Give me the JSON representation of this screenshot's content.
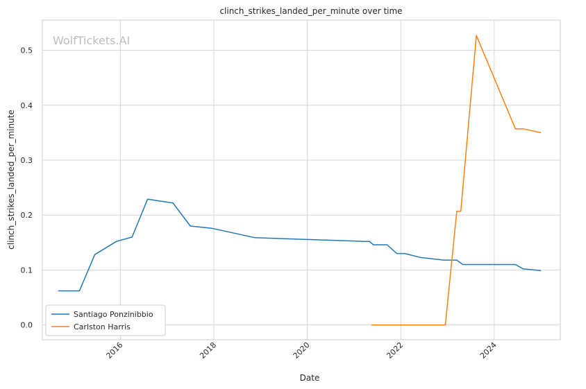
{
  "chart_data": {
    "type": "line",
    "title": "clinch_strikes_landed_per_minute over time",
    "xlabel": "Date",
    "ylabel": "clinch_strikes_landed_per_minute",
    "watermark": "WolfTickets.AI",
    "xlim": [
      "2014-05-01",
      "2025-06-01"
    ],
    "ylim": [
      -0.027,
      0.555
    ],
    "x_ticks": [
      {
        "date": "2016-01-01",
        "label": "2016"
      },
      {
        "date": "2018-01-01",
        "label": "2018"
      },
      {
        "date": "2020-01-01",
        "label": "2020"
      },
      {
        "date": "2022-01-01",
        "label": "2022"
      },
      {
        "date": "2024-01-01",
        "label": "2024"
      }
    ],
    "y_ticks": [
      {
        "value": 0.0,
        "label": "0.0"
      },
      {
        "value": 0.1,
        "label": "0.1"
      },
      {
        "value": 0.2,
        "label": "0.2"
      },
      {
        "value": 0.3,
        "label": "0.3"
      },
      {
        "value": 0.4,
        "label": "0.4"
      },
      {
        "value": 0.5,
        "label": "0.5"
      }
    ],
    "grid": true,
    "legend_position": "lower-left",
    "series": [
      {
        "name": "Santiago Ponzinibbio",
        "color": "#1f77b4",
        "points": [
          {
            "x": "2014-09-01",
            "y": 0.062
          },
          {
            "x": "2015-02-15",
            "y": 0.062
          },
          {
            "x": "2015-06-15",
            "y": 0.128
          },
          {
            "x": "2015-12-01",
            "y": 0.152
          },
          {
            "x": "2016-04-01",
            "y": 0.16
          },
          {
            "x": "2016-08-01",
            "y": 0.229
          },
          {
            "x": "2017-02-15",
            "y": 0.222
          },
          {
            "x": "2017-07-01",
            "y": 0.18
          },
          {
            "x": "2017-12-15",
            "y": 0.176
          },
          {
            "x": "2018-11-15",
            "y": 0.159
          },
          {
            "x": "2021-04-01",
            "y": 0.152
          },
          {
            "x": "2021-05-01",
            "y": 0.152
          },
          {
            "x": "2021-06-01",
            "y": 0.146
          },
          {
            "x": "2021-09-15",
            "y": 0.146
          },
          {
            "x": "2021-12-01",
            "y": 0.13
          },
          {
            "x": "2022-02-01",
            "y": 0.13
          },
          {
            "x": "2022-06-01",
            "y": 0.123
          },
          {
            "x": "2022-12-01",
            "y": 0.118
          },
          {
            "x": "2023-03-15",
            "y": 0.118
          },
          {
            "x": "2023-05-01",
            "y": 0.11
          },
          {
            "x": "2024-06-15",
            "y": 0.11
          },
          {
            "x": "2024-08-15",
            "y": 0.102
          },
          {
            "x": "2025-01-01",
            "y": 0.099
          }
        ]
      },
      {
        "name": "Carlston Harris",
        "color": "#ff7f0e",
        "points": [
          {
            "x": "2021-05-15",
            "y": 0.0
          },
          {
            "x": "2022-12-15",
            "y": 0.0
          },
          {
            "x": "2023-03-15",
            "y": 0.207
          },
          {
            "x": "2023-04-15",
            "y": 0.207
          },
          {
            "x": "2023-08-15",
            "y": 0.527
          },
          {
            "x": "2024-06-15",
            "y": 0.357
          },
          {
            "x": "2024-08-15",
            "y": 0.357
          },
          {
            "x": "2025-01-01",
            "y": 0.35
          }
        ]
      }
    ]
  }
}
